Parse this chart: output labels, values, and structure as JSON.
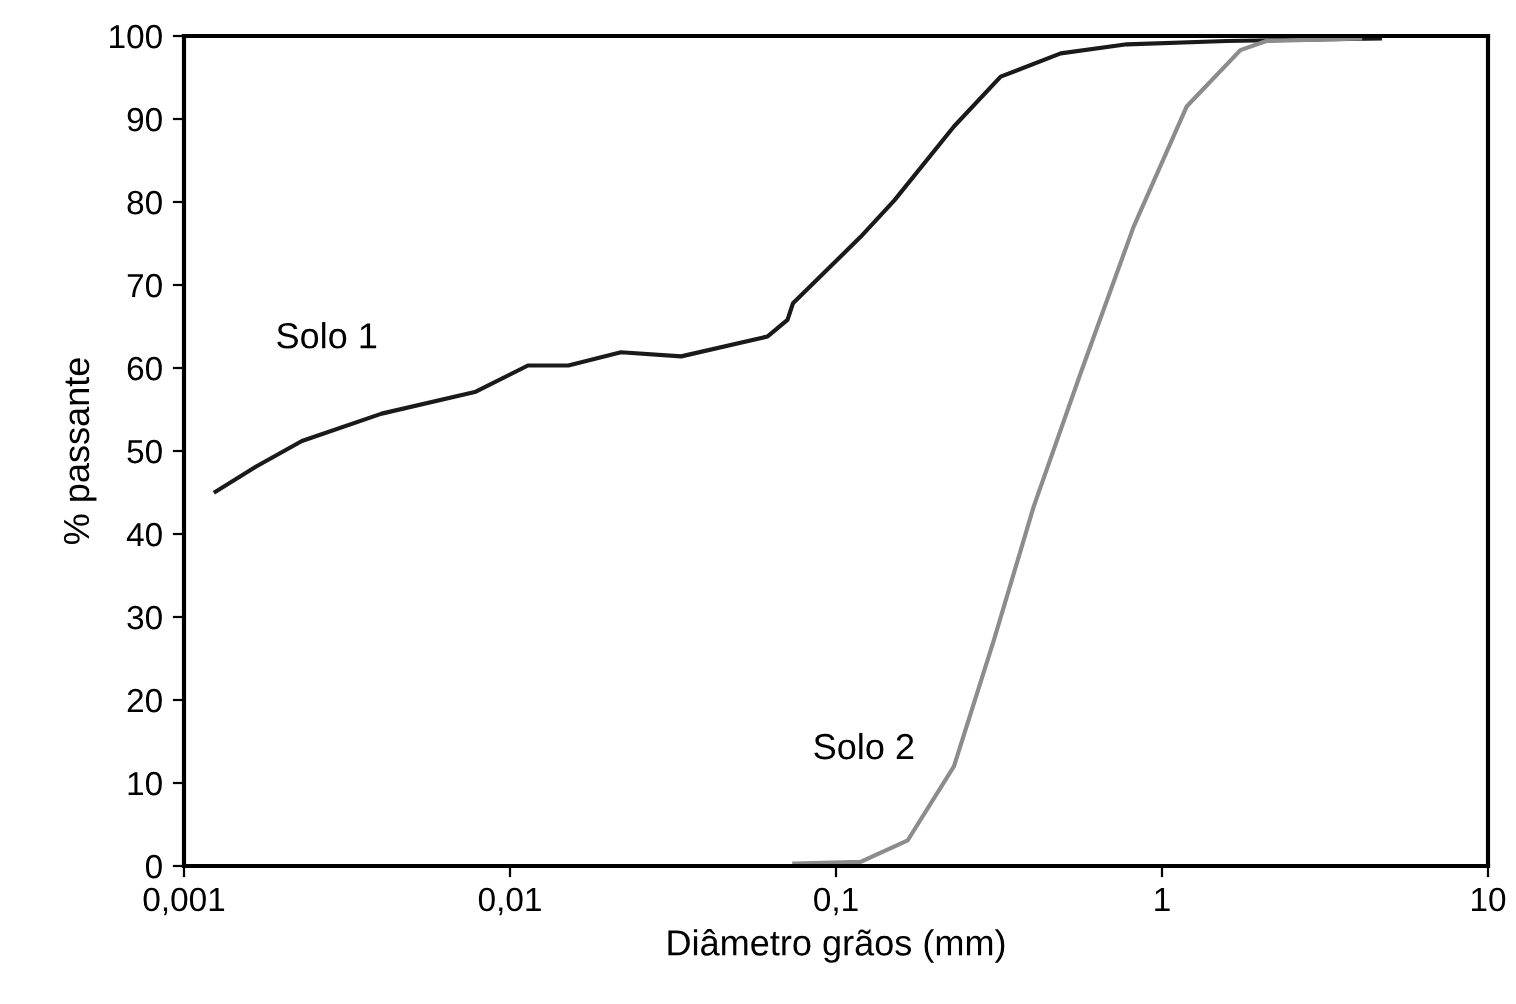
{
  "chart_data": {
    "type": "line",
    "xlabel": "Diâmetro grãos (mm)",
    "ylabel": "% passante",
    "log": "x",
    "grid": false,
    "legend": false,
    "marker": "none",
    "line_style": "solid",
    "xlim": [
      0.001,
      10
    ],
    "xticks": [
      {
        "value": 0.001,
        "label": "0,001"
      },
      {
        "value": 0.01,
        "label": "0,01"
      },
      {
        "value": 0.1,
        "label": "0,1"
      },
      {
        "value": 1,
        "label": "1"
      },
      {
        "value": 10,
        "label": "10"
      }
    ],
    "ylim": [
      0,
      100
    ],
    "yticks": [
      0,
      10,
      20,
      30,
      40,
      50,
      60,
      70,
      80,
      90,
      100
    ],
    "series": [
      {
        "name": "Solo 1",
        "color": "#1a1a1a",
        "x": [
          0.00125,
          0.00166,
          0.0023,
          0.00404,
          0.0078,
          0.01135,
          0.0151,
          0.0219,
          0.0335,
          0.0617,
          0.071,
          0.0738,
          0.119,
          0.151,
          0.23,
          0.32,
          0.489,
          0.78,
          1.58,
          4.66
        ],
        "values": [
          45.1,
          48.1,
          51.2,
          54.5,
          57.1,
          60.3,
          60.3,
          61.9,
          61.4,
          63.8,
          65.8,
          67.8,
          75.8,
          80.2,
          89.1,
          95.1,
          97.9,
          99.0,
          99.4,
          99.7
        ]
      },
      {
        "name": "Solo 2",
        "color": "#8c8c8c",
        "x": [
          0.0745,
          0.119,
          0.166,
          0.23,
          0.305,
          0.404,
          0.562,
          0.818,
          1.19,
          1.74,
          2.09,
          4.05
        ],
        "values": [
          0.3,
          0.5,
          3.1,
          12.0,
          27.2,
          43.3,
          59.3,
          77.0,
          91.5,
          98.3,
          99.4,
          99.7
        ]
      }
    ]
  }
}
